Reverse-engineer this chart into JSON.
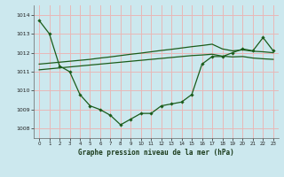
{
  "title": "Graphe pression niveau de la mer (hPa)",
  "background_color": "#cce8ee",
  "grid_color": "#e8b8b8",
  "line_color": "#1a5c1a",
  "xlim": [
    -0.5,
    23.5
  ],
  "ylim": [
    1007.5,
    1014.5
  ],
  "yticks": [
    1008,
    1009,
    1010,
    1011,
    1012,
    1013,
    1014
  ],
  "xticks": [
    0,
    1,
    2,
    3,
    4,
    5,
    6,
    7,
    8,
    9,
    10,
    11,
    12,
    13,
    14,
    15,
    16,
    17,
    18,
    19,
    20,
    21,
    22,
    23
  ],
  "series1": [
    1013.7,
    1013.0,
    1011.3,
    1011.0,
    1009.8,
    1009.2,
    1009.0,
    1008.7,
    1008.2,
    1008.5,
    1008.8,
    1008.8,
    1009.2,
    1009.3,
    1009.4,
    1009.8,
    1011.4,
    1011.8,
    1011.8,
    1012.0,
    1012.2,
    1012.1,
    1012.8,
    1012.1
  ],
  "series2": [
    1011.1,
    1011.15,
    1011.2,
    1011.25,
    1011.3,
    1011.35,
    1011.4,
    1011.45,
    1011.5,
    1011.55,
    1011.6,
    1011.65,
    1011.7,
    1011.75,
    1011.8,
    1011.85,
    1011.88,
    1011.92,
    1011.82,
    1011.78,
    1011.8,
    1011.72,
    1011.68,
    1011.65
  ],
  "series3": [
    1011.4,
    1011.45,
    1011.5,
    1011.55,
    1011.6,
    1011.65,
    1011.72,
    1011.78,
    1011.85,
    1011.92,
    1011.98,
    1012.05,
    1012.12,
    1012.18,
    1012.25,
    1012.32,
    1012.38,
    1012.45,
    1012.2,
    1012.1,
    1012.15,
    1012.08,
    1012.05,
    1012.0
  ]
}
